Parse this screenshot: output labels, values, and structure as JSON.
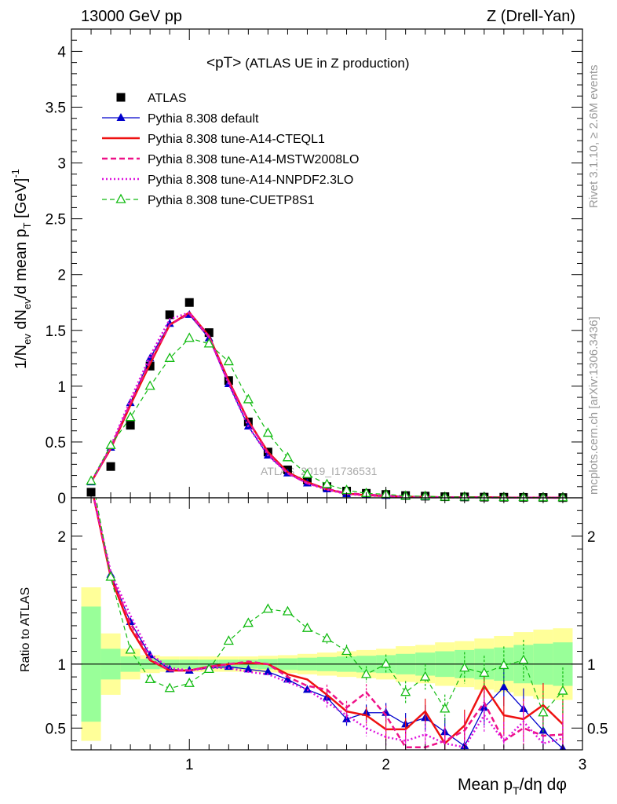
{
  "header": {
    "left": "13000 GeV pp",
    "right": "Z (Drell-Yan)",
    "plot_title": "<pT>",
    "plot_subtitle": "(ATLAS UE in Z production)",
    "watermark": "ATLAS_2019_I1736531",
    "side_top": "Rivet 3.1.10, ≥ 2.6M events",
    "side_bottom": "mcplots.cern.ch [arXiv:1306.3436]"
  },
  "colors": {
    "atlas": "#000000",
    "default": "#0000cc",
    "cteql1": "#ee1111",
    "mstw": "#ee1188",
    "nnpdf": "#dd11dd",
    "cuetp": "#11bb11",
    "band_yellow": "#ffff99",
    "band_green": "#99ff99"
  },
  "chart_data": [
    {
      "type": "line",
      "title": "<pT> (ATLAS UE in Z production)",
      "ylabel": "1/N_ev dN_ev/d mean p_T [GeV]^-1",
      "xlim": [
        0.4,
        3.0
      ],
      "ylim": [
        0,
        4.2
      ],
      "yticks": [
        "0",
        "0.5",
        "1",
        "1.5",
        "2",
        "2.5",
        "3",
        "3.5",
        "4"
      ],
      "legend_position": "top-left",
      "x": [
        0.5,
        0.6,
        0.7,
        0.8,
        0.9,
        1.0,
        1.1,
        1.2,
        1.3,
        1.4,
        1.5,
        1.6,
        1.7,
        1.8,
        1.9,
        2.0,
        2.1,
        2.2,
        2.3,
        2.4,
        2.5,
        2.6,
        2.7,
        2.8,
        2.9
      ],
      "series": [
        {
          "name": "ATLAS",
          "values": [
            0.05,
            0.28,
            0.65,
            1.18,
            1.64,
            1.75,
            1.48,
            1.05,
            0.68,
            0.41,
            0.25,
            0.16,
            0.1,
            0.06,
            0.04,
            0.03,
            0.02,
            0.015,
            0.01,
            0.008,
            0.006,
            0.005,
            0.004,
            0.003,
            0.002
          ]
        },
        {
          "name": "Pythia 8.308 default",
          "values": [
            0.14,
            0.45,
            0.85,
            1.25,
            1.56,
            1.64,
            1.43,
            1.02,
            0.64,
            0.38,
            0.22,
            0.13,
            0.077,
            0.034,
            0.025,
            0.019,
            0.011,
            0.008,
            0.005,
            0.003,
            0.004,
            0.004,
            0.003,
            0.002,
            0.001
          ]
        },
        {
          "name": "Pythia 8.308 tune-A14-CTEQL1",
          "values": [
            0.14,
            0.44,
            0.83,
            1.2,
            1.55,
            1.66,
            1.45,
            1.05,
            0.69,
            0.41,
            0.23,
            0.14,
            0.076,
            0.038,
            0.024,
            0.015,
            0.01,
            0.009,
            0.004,
            0.004,
            0.005,
            0.003,
            0.002,
            0.002,
            0.001
          ]
        },
        {
          "name": "Pythia 8.308 tune-A14-MSTW2008LO",
          "values": [
            0.14,
            0.45,
            0.85,
            1.22,
            1.55,
            1.65,
            1.44,
            1.04,
            0.69,
            0.4,
            0.22,
            0.13,
            0.08,
            0.04,
            0.03,
            0.018,
            0.007,
            0.005,
            0.004,
            0.004,
            0.004,
            0.002,
            0.002,
            0.001,
            0.001
          ]
        },
        {
          "name": "Pythia 8.308 tune-A14-NNPDF2.3LO",
          "values": [
            0.14,
            0.46,
            0.88,
            1.27,
            1.6,
            1.66,
            1.44,
            1.02,
            0.64,
            0.38,
            0.22,
            0.13,
            0.072,
            0.034,
            0.02,
            0.013,
            0.008,
            0.007,
            0.004,
            0.003,
            0.004,
            0.002,
            0.002,
            0.001,
            0.001
          ]
        },
        {
          "name": "Pythia 8.308 tune-CUETP8S1",
          "values": [
            0.15,
            0.47,
            0.72,
            1.0,
            1.25,
            1.43,
            1.38,
            1.22,
            0.88,
            0.58,
            0.36,
            0.21,
            0.12,
            0.067,
            0.04,
            0.032,
            0.016,
            0.014,
            0.007,
            0.008,
            0.006,
            0.004,
            0.004,
            0.002,
            0.002
          ]
        }
      ]
    },
    {
      "type": "line",
      "ylabel": "Ratio to ATLAS",
      "xlabel": "Mean p_T/dη dφ",
      "xlim": [
        0.4,
        3.0
      ],
      "ylim": [
        0.33,
        2.3
      ],
      "yticks": [
        "0.5",
        "1",
        "2"
      ],
      "xticks": [
        "1",
        "2",
        "3"
      ],
      "x": [
        0.5,
        0.6,
        0.7,
        0.8,
        0.9,
        1.0,
        1.1,
        1.2,
        1.3,
        1.4,
        1.5,
        1.6,
        1.7,
        1.8,
        1.9,
        2.0,
        2.1,
        2.2,
        2.3,
        2.4,
        2.5,
        2.6,
        2.7,
        2.8,
        2.9
      ],
      "band_yellow_halfwidth": [
        0.6,
        0.24,
        0.12,
        0.07,
        0.06,
        0.06,
        0.06,
        0.06,
        0.06,
        0.065,
        0.07,
        0.08,
        0.09,
        0.1,
        0.11,
        0.12,
        0.14,
        0.15,
        0.17,
        0.18,
        0.2,
        0.22,
        0.25,
        0.27,
        0.28
      ],
      "band_green_halfwidth": [
        0.45,
        0.12,
        0.06,
        0.04,
        0.035,
        0.035,
        0.035,
        0.035,
        0.035,
        0.04,
        0.045,
        0.05,
        0.055,
        0.06,
        0.065,
        0.07,
        0.08,
        0.09,
        0.1,
        0.11,
        0.12,
        0.13,
        0.15,
        0.16,
        0.17
      ],
      "series": [
        {
          "name": "Pythia 8.308 default",
          "values": [
            2.4,
            1.7,
            1.33,
            1.07,
            0.96,
            0.95,
            0.97,
            0.98,
            0.96,
            0.94,
            0.88,
            0.8,
            0.74,
            0.57,
            0.62,
            0.62,
            0.53,
            0.58,
            0.47,
            0.36,
            0.66,
            0.82,
            0.65,
            0.48,
            0.34
          ]
        },
        {
          "name": "Pythia 8.308 tune-A14-CTEQL1",
          "values": [
            2.4,
            1.68,
            1.28,
            1.03,
            0.95,
            0.95,
            0.98,
            1.0,
            1.01,
            1.0,
            0.92,
            0.88,
            0.76,
            0.63,
            0.6,
            0.49,
            0.49,
            0.63,
            0.38,
            0.52,
            0.83,
            0.6,
            0.57,
            0.68,
            0.53
          ]
        },
        {
          "name": "Pythia 8.308 tune-A14-MSTW2008LO",
          "values": [
            2.4,
            1.7,
            1.32,
            1.04,
            0.95,
            0.95,
            0.98,
            1.0,
            1.02,
            1.0,
            0.9,
            0.83,
            0.8,
            0.66,
            0.78,
            0.6,
            0.35,
            0.35,
            0.4,
            0.48,
            0.7,
            0.4,
            0.5,
            0.44,
            0.45
          ]
        },
        {
          "name": "Pythia 8.308 tune-A14-NNPDF2.3LO",
          "values": [
            2.4,
            1.72,
            1.38,
            1.08,
            0.97,
            0.95,
            0.97,
            0.97,
            0.94,
            0.92,
            0.86,
            0.8,
            0.7,
            0.6,
            0.5,
            0.43,
            0.4,
            0.45,
            0.38,
            0.35,
            0.6,
            0.4,
            0.55,
            0.38,
            0.42
          ]
        },
        {
          "name": "Pythia 8.308 tune-CUETP8S1",
          "values": [
            2.5,
            1.68,
            1.11,
            0.88,
            0.81,
            0.85,
            0.96,
            1.18,
            1.32,
            1.43,
            1.41,
            1.28,
            1.2,
            1.1,
            0.92,
            1.0,
            0.78,
            0.9,
            0.65,
            0.97,
            0.93,
            0.99,
            1.03,
            0.62,
            0.79
          ]
        }
      ]
    }
  ]
}
